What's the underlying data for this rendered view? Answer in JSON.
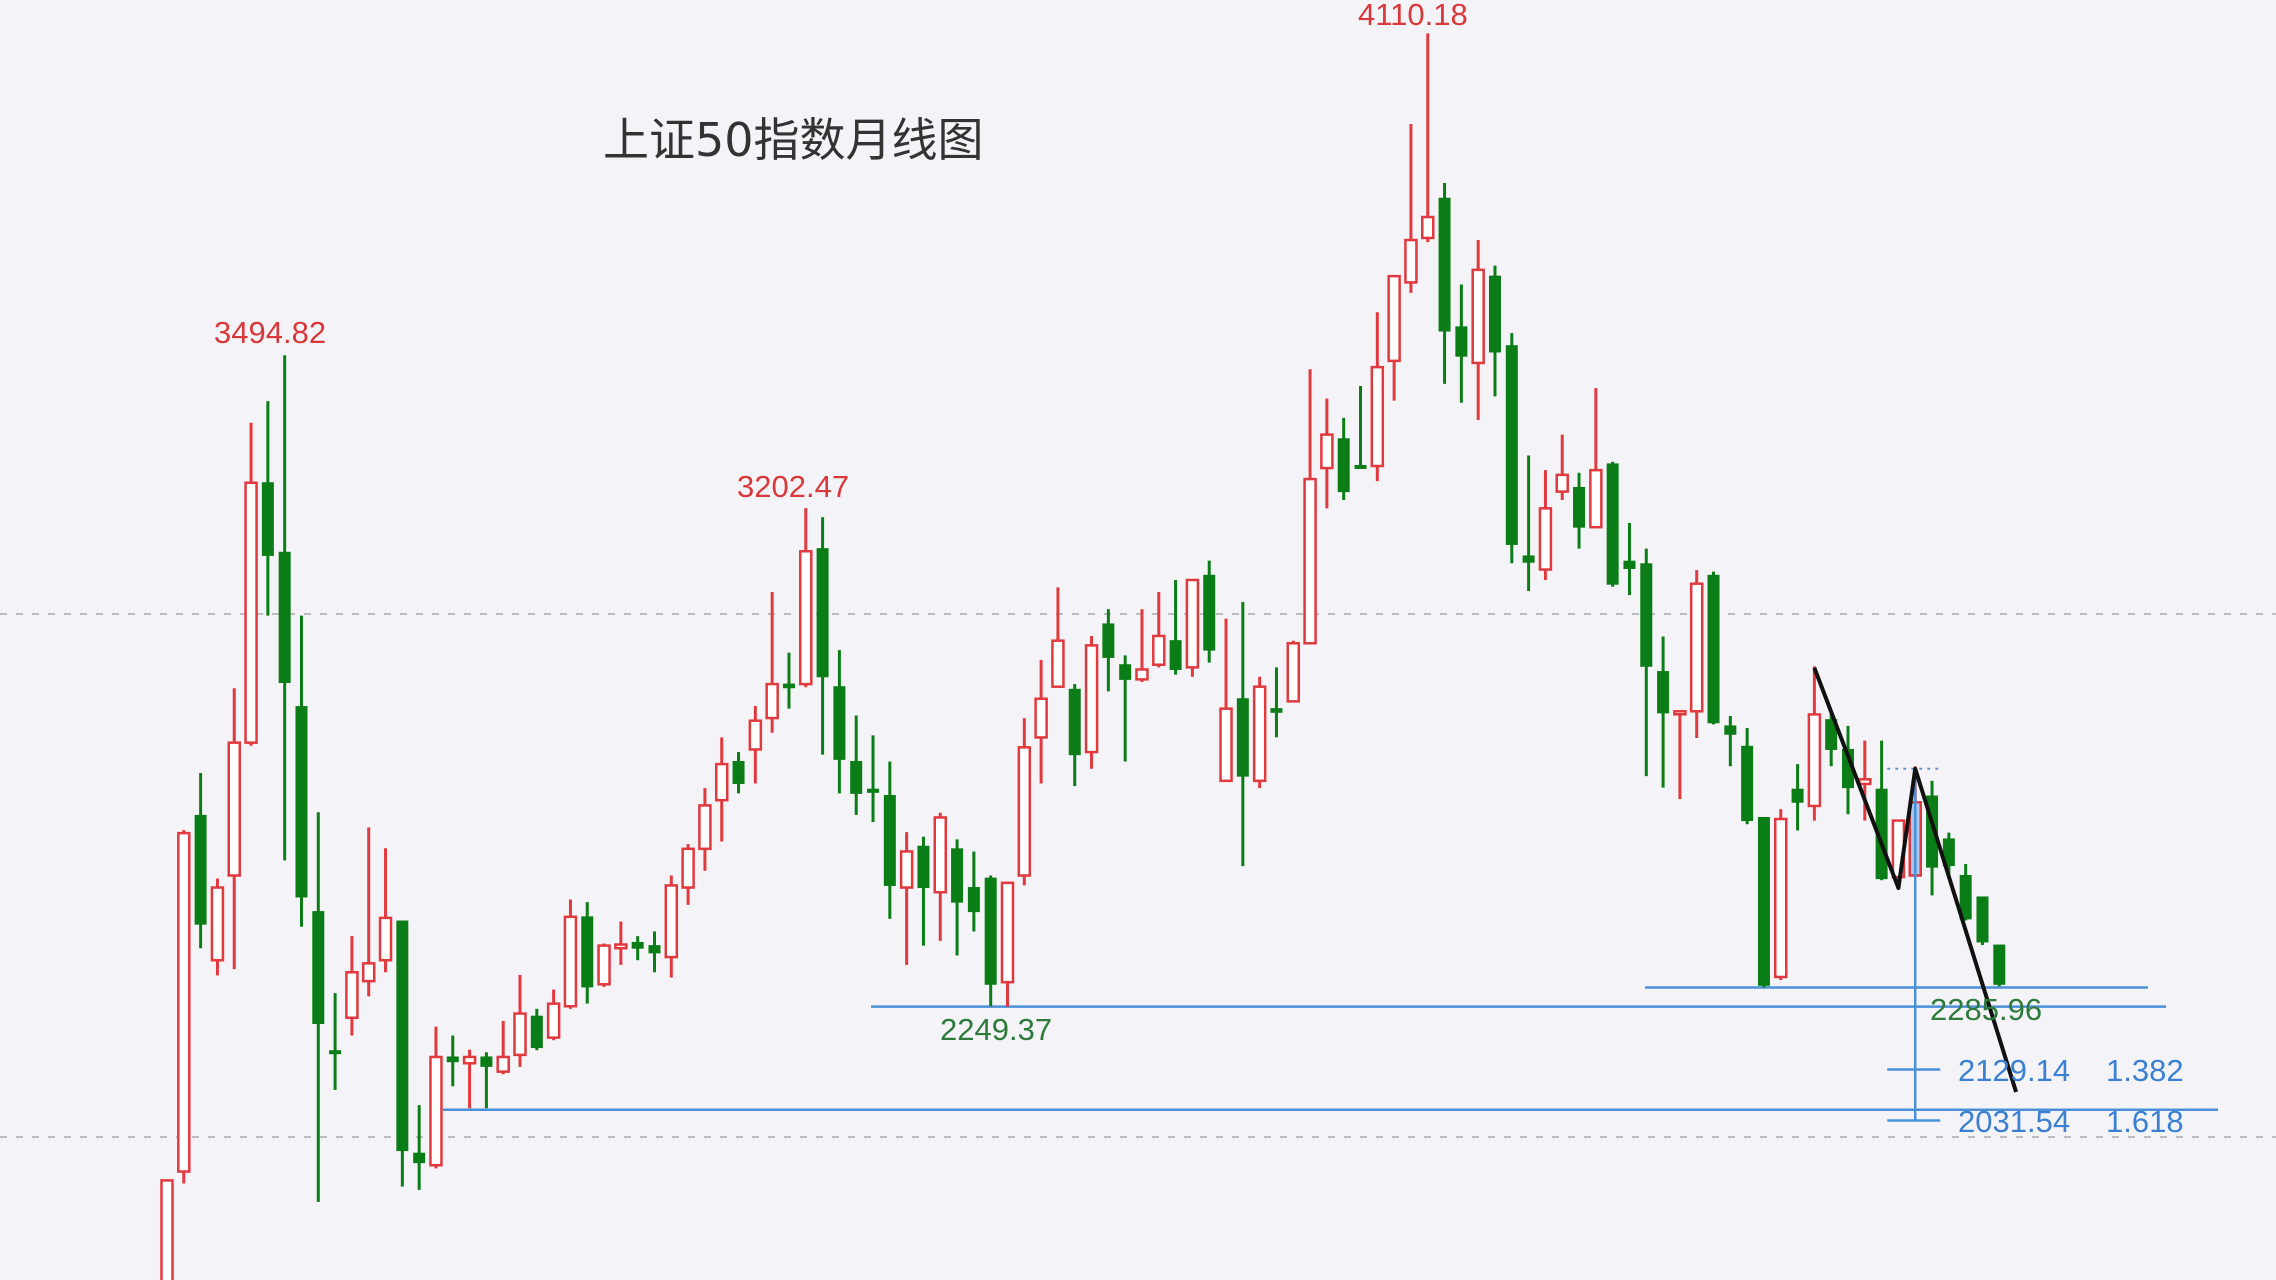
{
  "chart_data": {
    "type": "candlestick",
    "title": "上证50指数月线图",
    "grid": "horizontal dashed",
    "gridlines": [
      3000,
      2000
    ],
    "ylim": [
      1850,
      4130
    ],
    "colors": {
      "up": "#e0393e",
      "down": "#0b7d16",
      "selected": "#a9c8ee",
      "line": "#4a90d9",
      "zigzag": "#111111",
      "label_red": "#d9383a",
      "label_green": "#2d7a3a",
      "label_blue": "#3b7fd0"
    },
    "ohlc_fields": [
      "open",
      "high",
      "low",
      "close"
    ],
    "ohlc": [
      [
        1700,
        1917,
        1650,
        1917
      ],
      [
        1934,
        2587,
        1911,
        2581
      ],
      [
        2615,
        2696,
        2361,
        2407
      ],
      [
        2338,
        2494,
        2309,
        2477
      ],
      [
        2500,
        2858,
        2321,
        2754
      ],
      [
        2754,
        3366,
        2748,
        3251
      ],
      [
        3251,
        3407,
        2997,
        3112
      ],
      [
        3118,
        3494.82,
        2529,
        2869
      ],
      [
        2823,
        2997,
        2402,
        2459
      ],
      [
        2431,
        2621,
        1876,
        2217
      ],
      [
        2165,
        2275,
        2090,
        2160
      ],
      [
        2228,
        2384,
        2194,
        2315
      ],
      [
        2298,
        2592,
        2269,
        2332
      ],
      [
        2338,
        2552,
        2315,
        2419
      ],
      [
        2413,
        2413,
        1905,
        1974
      ],
      [
        1969,
        2061,
        1899,
        1951
      ],
      [
        1946,
        2211,
        1940,
        2153
      ],
      [
        2153,
        2194,
        2097,
        2144
      ],
      [
        2141,
        2167,
        2055,
        2153
      ],
      [
        2153,
        2162,
        2055,
        2135
      ],
      [
        2125,
        2222,
        2120,
        2153
      ],
      [
        2157,
        2310,
        2134,
        2236
      ],
      [
        2231,
        2245,
        2166,
        2171
      ],
      [
        2190,
        2282,
        2185,
        2255
      ],
      [
        2250,
        2454,
        2245,
        2421
      ],
      [
        2421,
        2449,
        2255,
        2287
      ],
      [
        2292,
        2370,
        2287,
        2366
      ],
      [
        2361,
        2412,
        2329,
        2368
      ],
      [
        2372,
        2384,
        2338,
        2361
      ],
      [
        2366,
        2393,
        2315,
        2352
      ],
      [
        2344,
        2500,
        2305,
        2481
      ],
      [
        2477,
        2560,
        2444,
        2551
      ],
      [
        2551,
        2667,
        2509,
        2634
      ],
      [
        2644,
        2764,
        2565,
        2713
      ],
      [
        2718,
        2736,
        2657,
        2676
      ],
      [
        2741,
        2824,
        2676,
        2796
      ],
      [
        2801,
        3042,
        2773,
        2866
      ],
      [
        2866,
        2926,
        2819,
        2859
      ],
      [
        2866,
        3202.47,
        2860,
        3120
      ],
      [
        3125,
        3185,
        2731,
        2880
      ],
      [
        2861,
        2931,
        2657,
        2722
      ],
      [
        2718,
        2806,
        2616,
        2657
      ],
      [
        2665,
        2768,
        2602,
        2659
      ],
      [
        2653,
        2718,
        2417,
        2481
      ],
      [
        2477,
        2583,
        2329,
        2546
      ],
      [
        2556,
        2574,
        2366,
        2477
      ],
      [
        2468,
        2620,
        2375,
        2611
      ],
      [
        2551,
        2569,
        2347,
        2449
      ],
      [
        2477,
        2546,
        2393,
        2431
      ],
      [
        2495,
        2500,
        2250,
        2292
      ],
      [
        2296,
        2486,
        2249.37,
        2486
      ],
      [
        2500,
        2801,
        2481,
        2745
      ],
      [
        2764,
        2912,
        2676,
        2838
      ],
      [
        2861,
        3051,
        2861,
        2949
      ],
      [
        2856,
        2866,
        2671,
        2731
      ],
      [
        2736,
        2958,
        2704,
        2940
      ],
      [
        2981,
        3009,
        2852,
        2917
      ],
      [
        2903,
        2921,
        2718,
        2875
      ],
      [
        2875,
        3009,
        2870,
        2894
      ],
      [
        2903,
        3042,
        2898,
        2958
      ],
      [
        2949,
        3065,
        2884,
        2894
      ],
      [
        2898,
        3065,
        2880,
        3065
      ],
      [
        3074,
        3102,
        2907,
        2931
      ],
      [
        2681,
        2991,
        2681,
        2819
      ],
      [
        2838,
        3023,
        2518,
        2690
      ],
      [
        2681,
        2880,
        2667,
        2861
      ],
      [
        2819,
        2898,
        2764,
        2812
      ],
      [
        2833,
        2949,
        2833,
        2944
      ],
      [
        2944,
        3468,
        2944,
        3258
      ],
      [
        3279,
        3412,
        3202,
        3343
      ],
      [
        3335,
        3375,
        3218,
        3234
      ],
      [
        3284,
        3436,
        3281,
        3281
      ],
      [
        3283,
        3577,
        3254,
        3472
      ],
      [
        3484,
        3646,
        3408,
        3646
      ],
      [
        3634,
        3937,
        3614,
        3715
      ],
      [
        3719,
        4110.18,
        3711,
        3759
      ],
      [
        3795,
        3824,
        3440,
        3541
      ],
      [
        3549,
        3630,
        3404,
        3493
      ],
      [
        3480,
        3715,
        3371,
        3658
      ],
      [
        3646,
        3666,
        3416,
        3501
      ],
      [
        3513,
        3537,
        3097,
        3133
      ],
      [
        3111,
        3303,
        3044,
        3099
      ],
      [
        3085,
        3275,
        3065,
        3202
      ],
      [
        3234,
        3343,
        3218,
        3266
      ],
      [
        3242,
        3270,
        3125,
        3166
      ],
      [
        3166,
        3432,
        3166,
        3275
      ],
      [
        3287,
        3291,
        3052,
        3057
      ],
      [
        3101,
        3174,
        3036,
        3087
      ],
      [
        3096,
        3125,
        2690,
        2900
      ],
      [
        2890,
        2957,
        2668,
        2811
      ],
      [
        2811,
        2814,
        2646,
        2814
      ],
      [
        2814,
        3084,
        2763,
        3058
      ],
      [
        3074,
        3081,
        2789,
        2792
      ],
      [
        2786,
        2805,
        2709,
        2770
      ],
      [
        2747,
        2782,
        2598,
        2605
      ],
      [
        2611,
        2611,
        2285.96,
        2290
      ],
      [
        2306,
        2627,
        2300,
        2608
      ],
      [
        2665,
        2713,
        2586,
        2640
      ],
      [
        2633,
        2900,
        2605,
        2808
      ],
      [
        2798,
        2811,
        2709,
        2741
      ],
      [
        2741,
        2786,
        2617,
        2668
      ],
      [
        2675,
        2758,
        2605,
        2684
      ],
      [
        2665,
        2758,
        2491,
        2494
      ],
      [
        2497,
        2605,
        2491,
        2605
      ],
      [
        2500,
        2709,
        2497,
        2640
      ],
      [
        2652,
        2681,
        2462,
        2516
      ],
      [
        2570,
        2582,
        2494,
        2519
      ],
      [
        2500,
        2522,
        2414,
        2417
      ],
      [
        2459,
        2459,
        2367,
        2373
      ],
      [
        2367,
        2367,
        2288,
        2292
      ]
    ],
    "selected_candle": 105,
    "annotations": {
      "high_1": "3494.82",
      "high_2": "3202.47",
      "high_3": "4110.18",
      "low_1": "2249.37",
      "low_2": "2285.96",
      "fib_1_price": "2129.14",
      "fib_1_ratio": "1.382",
      "fib_2_price": "2031.54",
      "fib_2_ratio": "1.618"
    },
    "horizontal_levels": [
      2052,
      2249.37,
      2285.96
    ],
    "fib_levels": [
      2129.14,
      2031.54
    ],
    "zigzag": [
      [
        99,
        2897
      ],
      [
        104,
        2476
      ],
      [
        105,
        2704
      ],
      [
        111,
        2086
      ]
    ]
  }
}
